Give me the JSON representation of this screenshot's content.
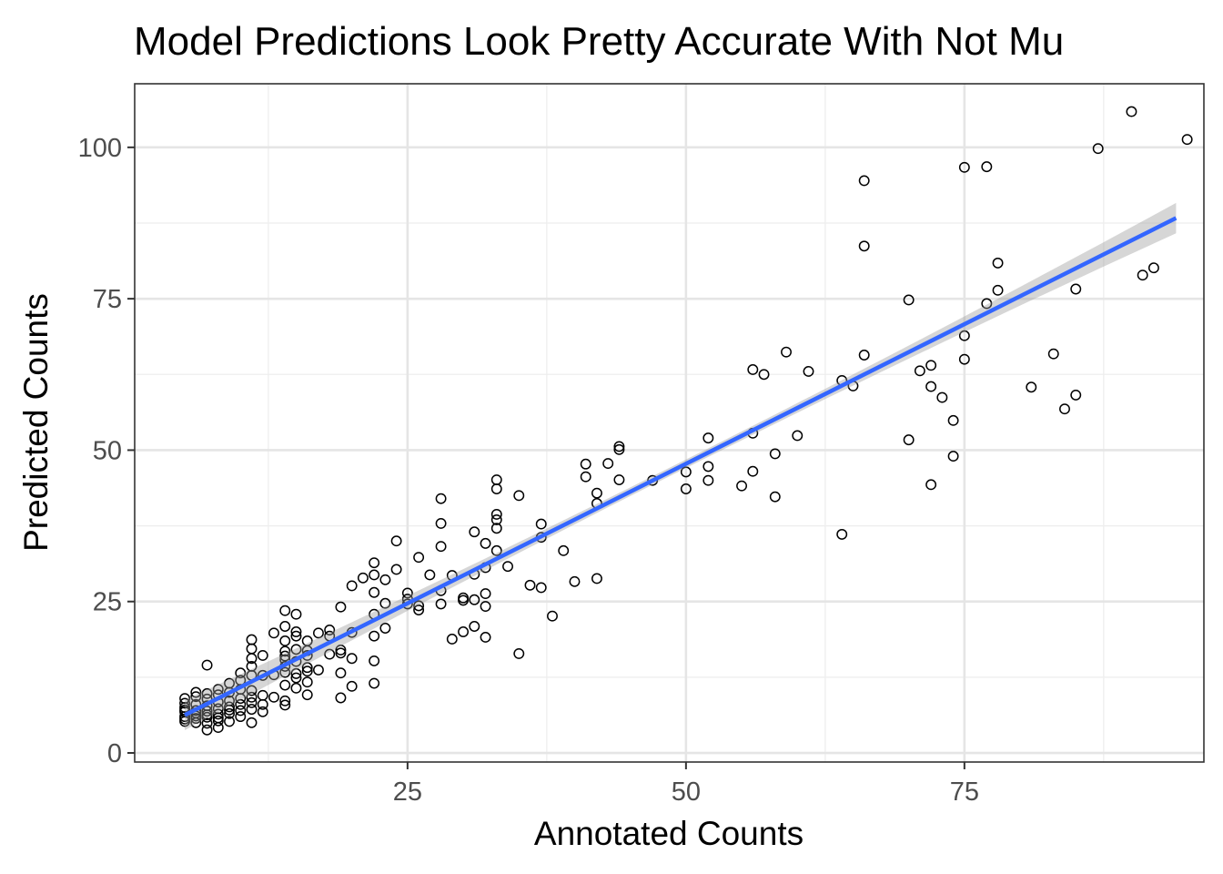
{
  "chart_data": {
    "type": "scatter",
    "title": "Model Predictions Look Pretty Accurate With Not Mu",
    "xlabel": "Annotated Counts",
    "ylabel": "Predicted Counts",
    "xlim": [
      0.5,
      96.5
    ],
    "ylim": [
      -1.5,
      110.5
    ],
    "x_ticks": [
      25,
      50,
      75
    ],
    "x_tick_labels": [
      "25",
      "50",
      "75"
    ],
    "y_ticks": [
      0,
      25,
      50,
      75,
      100
    ],
    "y_tick_labels": [
      "0",
      "25",
      "50",
      "75",
      "100"
    ],
    "grid": true,
    "colors": {
      "points": "#000000",
      "fit_line": "#3366ff",
      "confidence_band": "#999999",
      "panel_background": "#ffffff",
      "grid": "#ebebeb"
    },
    "fit": {
      "method": "linear",
      "x_range": [
        5,
        94
      ],
      "intercept": 1.65,
      "slope": 0.922,
      "ci_halfwidth_mid": 0.7,
      "ci_halfwidth_end": 2.5
    },
    "points": [
      [
        5,
        5.2
      ],
      [
        5,
        6.0
      ],
      [
        5,
        6.8
      ],
      [
        5,
        7.5
      ],
      [
        5,
        8.2
      ],
      [
        5,
        9.0
      ],
      [
        5,
        5.6
      ],
      [
        5,
        7.1
      ],
      [
        6,
        5.0
      ],
      [
        6,
        6.1
      ],
      [
        6,
        7.0
      ],
      [
        6,
        8.0
      ],
      [
        6,
        9.3
      ],
      [
        6,
        5.7
      ],
      [
        6,
        6.6
      ],
      [
        6,
        10.0
      ],
      [
        7,
        3.8
      ],
      [
        7,
        4.9
      ],
      [
        7,
        5.9
      ],
      [
        7,
        6.9
      ],
      [
        7,
        7.8
      ],
      [
        7,
        8.9
      ],
      [
        7,
        9.8
      ],
      [
        7,
        14.5
      ],
      [
        7,
        6.3
      ],
      [
        8,
        4.2
      ],
      [
        8,
        5.3
      ],
      [
        8,
        6.4
      ],
      [
        8,
        7.3
      ],
      [
        8,
        8.4
      ],
      [
        8,
        9.6
      ],
      [
        8,
        10.5
      ],
      [
        8,
        5.8
      ],
      [
        9,
        5.2
      ],
      [
        9,
        6.5
      ],
      [
        9,
        7.6
      ],
      [
        9,
        8.6
      ],
      [
        9,
        10.0
      ],
      [
        9,
        11.5
      ],
      [
        9,
        7.1
      ],
      [
        10,
        6.0
      ],
      [
        10,
        7.0
      ],
      [
        10,
        8.0
      ],
      [
        10,
        9.0
      ],
      [
        10,
        10.5
      ],
      [
        10,
        13.2
      ],
      [
        10,
        12.0
      ],
      [
        11,
        5.0
      ],
      [
        11,
        7.2
      ],
      [
        11,
        8.3
      ],
      [
        11,
        9.2
      ],
      [
        11,
        10.3
      ],
      [
        11,
        12.8
      ],
      [
        11,
        14.3
      ],
      [
        11,
        15.6
      ],
      [
        11,
        17.2
      ],
      [
        11,
        18.7
      ],
      [
        12,
        6.8
      ],
      [
        12,
        8.0
      ],
      [
        12,
        9.5
      ],
      [
        12,
        12.8
      ],
      [
        12,
        16.1
      ],
      [
        13,
        9.2
      ],
      [
        13,
        12.9
      ],
      [
        13,
        19.8
      ],
      [
        14,
        7.9
      ],
      [
        14,
        8.6
      ],
      [
        14,
        11.2
      ],
      [
        14,
        13.3
      ],
      [
        14,
        14.3
      ],
      [
        14,
        15.4
      ],
      [
        14,
        16.0
      ],
      [
        14,
        16.8
      ],
      [
        14,
        18.5
      ],
      [
        14,
        20.9
      ],
      [
        14,
        23.5
      ],
      [
        15,
        10.7
      ],
      [
        15,
        12.4
      ],
      [
        15,
        13.1
      ],
      [
        15,
        15.1
      ],
      [
        15,
        17.1
      ],
      [
        15,
        19.3
      ],
      [
        15,
        20.0
      ],
      [
        15,
        22.9
      ],
      [
        16,
        9.6
      ],
      [
        16,
        11.7
      ],
      [
        16,
        13.5
      ],
      [
        16,
        14.1
      ],
      [
        16,
        16.1
      ],
      [
        16,
        16.9
      ],
      [
        16,
        18.5
      ],
      [
        17,
        13.7
      ],
      [
        17,
        19.8
      ],
      [
        18,
        16.3
      ],
      [
        18,
        19.3
      ],
      [
        18,
        20.3
      ],
      [
        19,
        9.1
      ],
      [
        19,
        13.2
      ],
      [
        19,
        16.5
      ],
      [
        19,
        17.0
      ],
      [
        19,
        24.1
      ],
      [
        20,
        11.0
      ],
      [
        20,
        15.6
      ],
      [
        20,
        19.9
      ],
      [
        20,
        27.6
      ],
      [
        21,
        28.9
      ],
      [
        22,
        11.5
      ],
      [
        22,
        15.2
      ],
      [
        22,
        19.3
      ],
      [
        22,
        22.9
      ],
      [
        22,
        26.5
      ],
      [
        22,
        29.4
      ],
      [
        22,
        31.4
      ],
      [
        23,
        20.6
      ],
      [
        23,
        24.7
      ],
      [
        23,
        28.6
      ],
      [
        24,
        30.3
      ],
      [
        24,
        35.0
      ],
      [
        25,
        24.6
      ],
      [
        25,
        25.4
      ],
      [
        25,
        26.4
      ],
      [
        26,
        23.6
      ],
      [
        26,
        24.3
      ],
      [
        26,
        32.3
      ],
      [
        27,
        29.4
      ],
      [
        28,
        24.6
      ],
      [
        28,
        26.8
      ],
      [
        28,
        34.1
      ],
      [
        28,
        37.9
      ],
      [
        28,
        42.0
      ],
      [
        29,
        18.8
      ],
      [
        29,
        29.3
      ],
      [
        30,
        20.0
      ],
      [
        30,
        25.2
      ],
      [
        30,
        25.6
      ],
      [
        31,
        20.9
      ],
      [
        31,
        25.3
      ],
      [
        31,
        29.5
      ],
      [
        31,
        36.5
      ],
      [
        32,
        19.1
      ],
      [
        32,
        24.2
      ],
      [
        32,
        26.3
      ],
      [
        32,
        30.6
      ],
      [
        32,
        34.6
      ],
      [
        33,
        33.4
      ],
      [
        33,
        37.1
      ],
      [
        33,
        38.5
      ],
      [
        33,
        39.4
      ],
      [
        33,
        43.6
      ],
      [
        33,
        45.1
      ],
      [
        34,
        30.8
      ],
      [
        35,
        16.4
      ],
      [
        35,
        42.5
      ],
      [
        36,
        27.7
      ],
      [
        37,
        27.3
      ],
      [
        37,
        35.6
      ],
      [
        37,
        37.8
      ],
      [
        38,
        22.6
      ],
      [
        39,
        33.4
      ],
      [
        40,
        28.3
      ],
      [
        41,
        45.6
      ],
      [
        41,
        47.7
      ],
      [
        42,
        28.8
      ],
      [
        42,
        41.2
      ],
      [
        42,
        42.9
      ],
      [
        43,
        47.8
      ],
      [
        44,
        45.1
      ],
      [
        44,
        50.1
      ],
      [
        44,
        50.6
      ],
      [
        47,
        45.0
      ],
      [
        50,
        43.6
      ],
      [
        50,
        46.4
      ],
      [
        52,
        45.0
      ],
      [
        52,
        47.3
      ],
      [
        52,
        52.0
      ],
      [
        55,
        44.1
      ],
      [
        56,
        46.5
      ],
      [
        56,
        52.8
      ],
      [
        56,
        63.3
      ],
      [
        57,
        62.5
      ],
      [
        58,
        42.3
      ],
      [
        58,
        49.4
      ],
      [
        59,
        66.2
      ],
      [
        60,
        52.4
      ],
      [
        61,
        63.0
      ],
      [
        64,
        36.1
      ],
      [
        64,
        61.5
      ],
      [
        65,
        60.6
      ],
      [
        66,
        65.7
      ],
      [
        66,
        83.7
      ],
      [
        66,
        94.5
      ],
      [
        70,
        51.7
      ],
      [
        70,
        74.8
      ],
      [
        71,
        63.1
      ],
      [
        72,
        44.3
      ],
      [
        72,
        60.5
      ],
      [
        72,
        64.0
      ],
      [
        73,
        58.7
      ],
      [
        74,
        49.0
      ],
      [
        74,
        54.9
      ],
      [
        75,
        65.0
      ],
      [
        75,
        68.9
      ],
      [
        75,
        96.7
      ],
      [
        77,
        74.2
      ],
      [
        77,
        96.8
      ],
      [
        78,
        76.4
      ],
      [
        78,
        80.9
      ],
      [
        81,
        60.4
      ],
      [
        83,
        65.9
      ],
      [
        84,
        56.8
      ],
      [
        85,
        59.1
      ],
      [
        85,
        76.6
      ],
      [
        87,
        99.8
      ],
      [
        90,
        105.9
      ],
      [
        91,
        78.9
      ],
      [
        92,
        80.1
      ],
      [
        95,
        101.3
      ]
    ]
  }
}
